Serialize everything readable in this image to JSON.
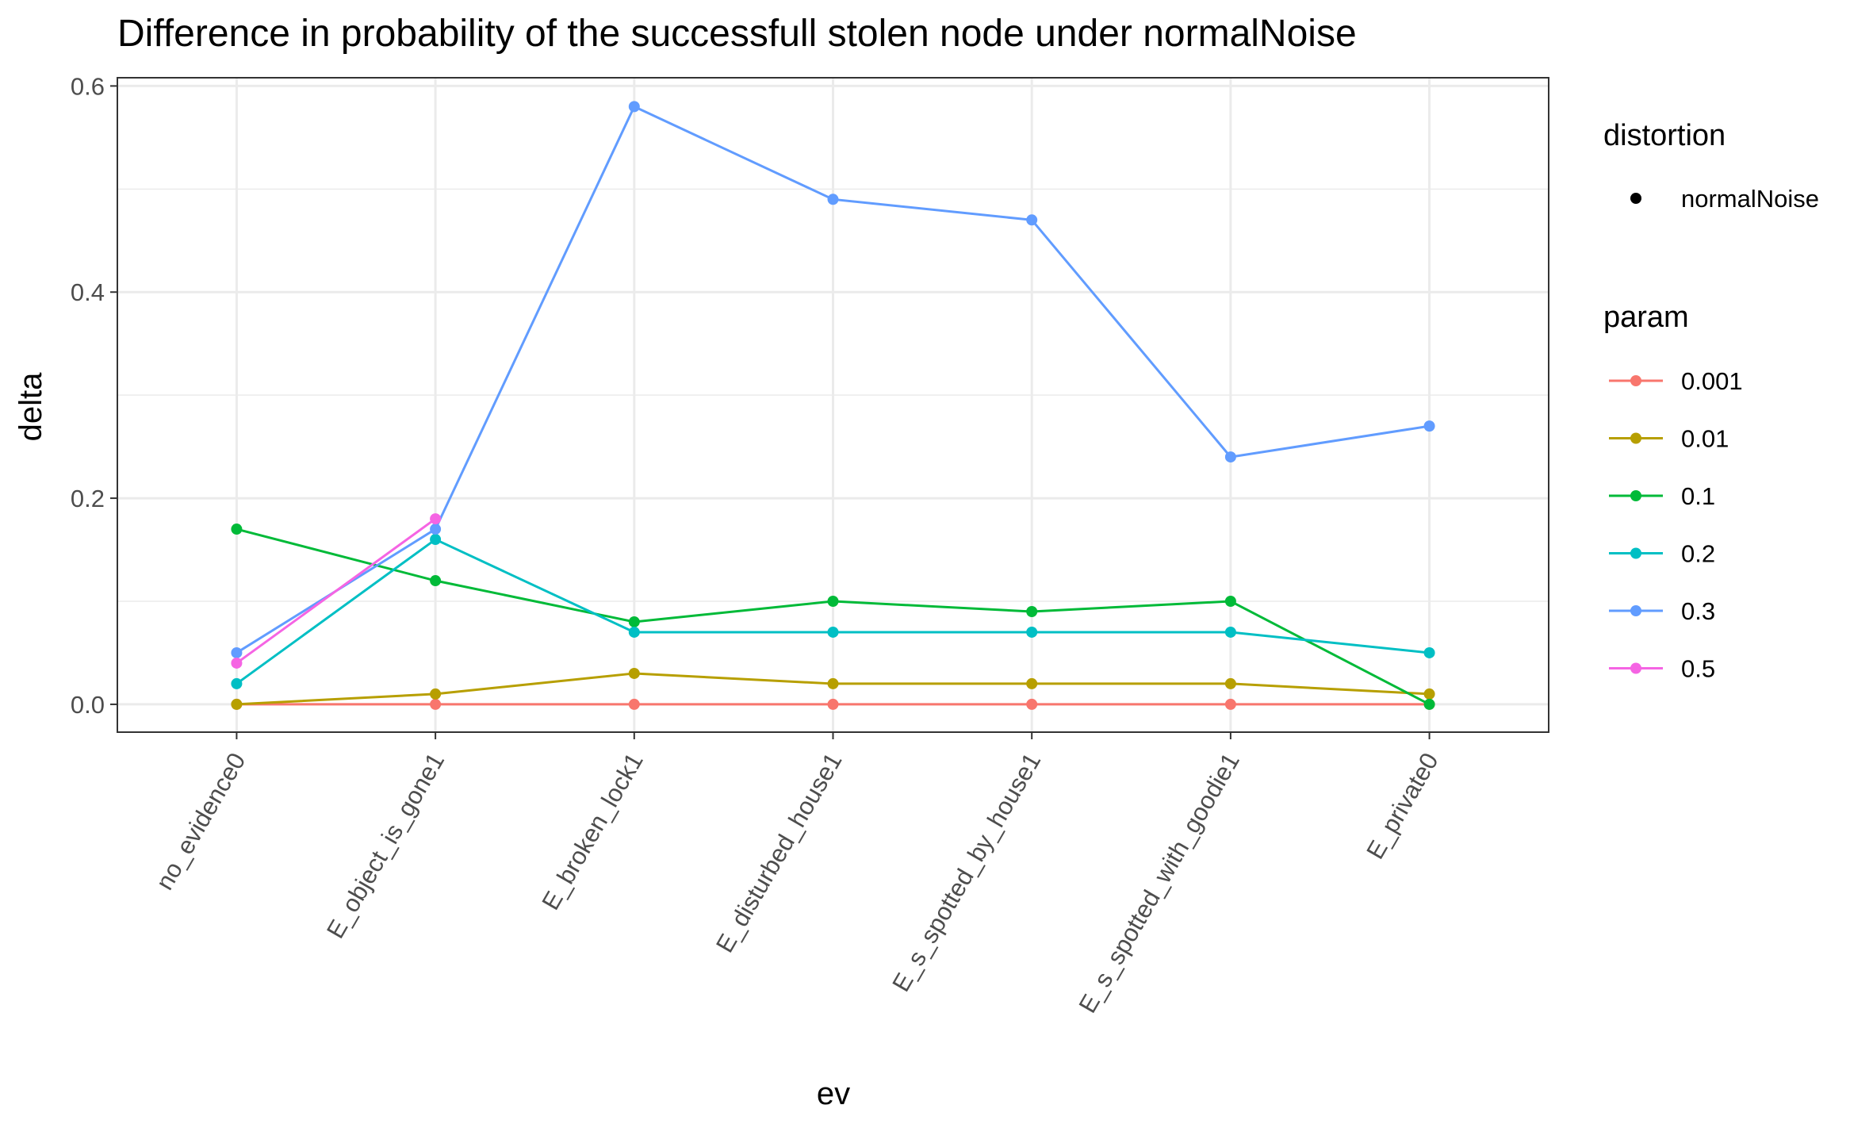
{
  "chart_data": {
    "type": "line",
    "title": "Difference in probability of the successfull stolen node under normalNoise",
    "xlabel": "ev",
    "ylabel": "delta",
    "categories": [
      "no_evidence0",
      "E_object_is_gone1",
      "E_broken_lock1",
      "E_disturbed_house1",
      "E_s_spotted_by_house1",
      "E_s_spotted_with_goodie1",
      "E_private0"
    ],
    "ylim": [
      -0.027,
      0.608
    ],
    "yticks": [
      0.0,
      0.2,
      0.4,
      0.6
    ],
    "ytick_labels": [
      "0.0",
      "0.2",
      "0.4",
      "0.6"
    ],
    "grid": true,
    "legend_position": "right",
    "legends": {
      "distortion": {
        "title": "distortion",
        "items": [
          "normalNoise"
        ]
      },
      "param": {
        "title": "param"
      }
    },
    "series": [
      {
        "name": "0.001",
        "color": "#F8766D",
        "values": [
          0.0,
          0.0,
          0.0,
          0.0,
          0.0,
          0.0,
          0.0
        ]
      },
      {
        "name": "0.01",
        "color": "#B79F00",
        "values": [
          0.0,
          0.01,
          0.03,
          0.02,
          0.02,
          0.02,
          0.01
        ]
      },
      {
        "name": "0.1",
        "color": "#00BA38",
        "values": [
          0.17,
          0.12,
          0.08,
          0.1,
          0.09,
          0.1,
          0.0
        ]
      },
      {
        "name": "0.2",
        "color": "#00BFC4",
        "values": [
          0.02,
          0.16,
          0.07,
          0.07,
          0.07,
          0.07,
          0.05
        ]
      },
      {
        "name": "0.3",
        "color": "#619CFF",
        "values": [
          0.05,
          0.17,
          0.58,
          0.49,
          0.47,
          0.24,
          0.27
        ]
      },
      {
        "name": "0.5",
        "color": "#F564E3",
        "values": [
          0.04,
          0.18,
          null,
          null,
          null,
          null,
          null
        ]
      }
    ]
  }
}
